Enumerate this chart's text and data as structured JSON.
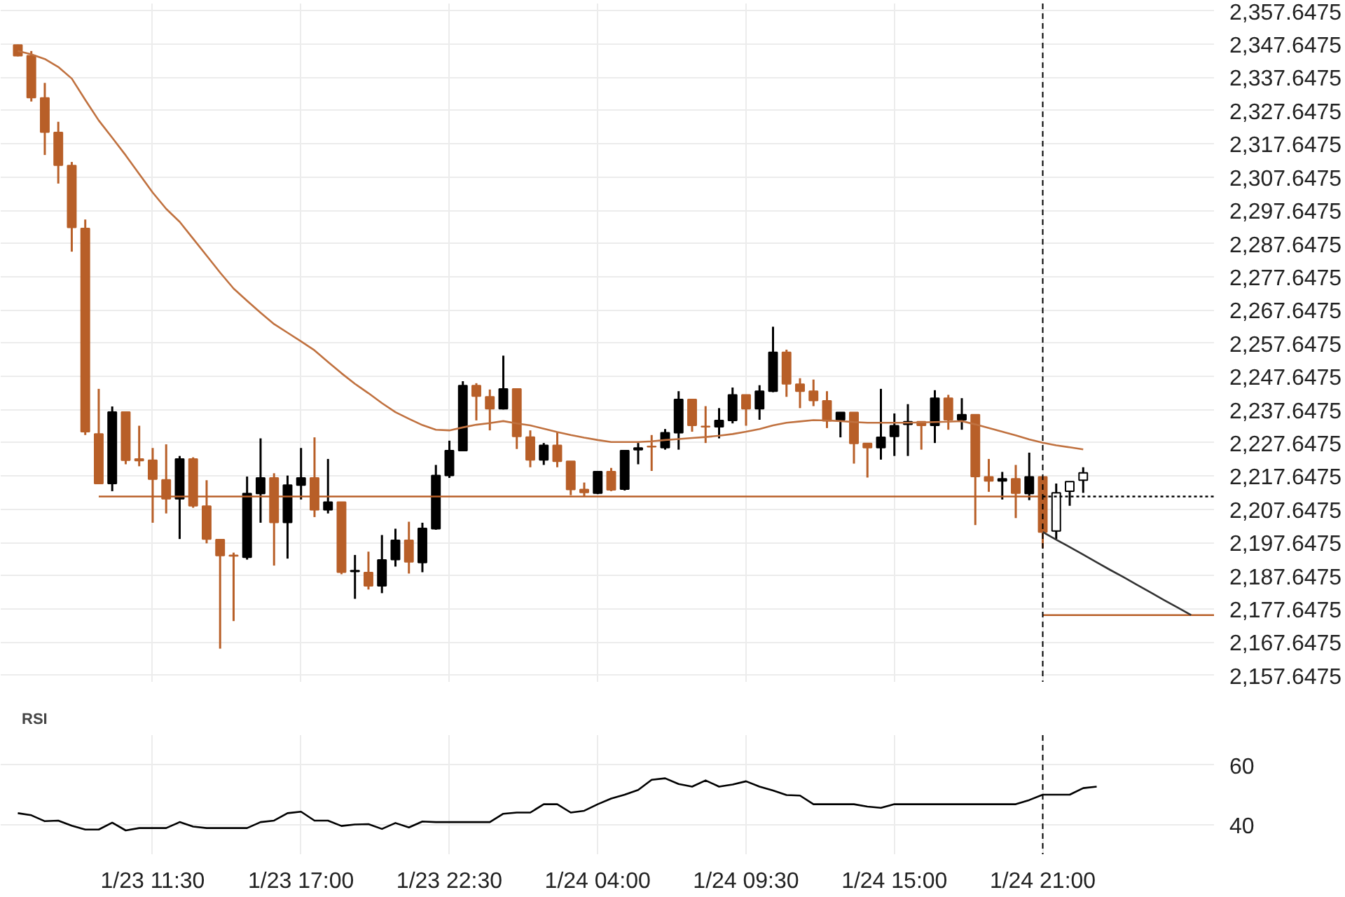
{
  "chart_data": [
    {
      "type": "candlestick",
      "categories": [
        null,
        null,
        null,
        null,
        null,
        null,
        null,
        null,
        null,
        null,
        "1/23 11:30",
        null,
        null,
        null,
        null,
        null,
        null,
        null,
        null,
        null,
        null,
        "1/23 17:00",
        null,
        null,
        null,
        null,
        null,
        null,
        null,
        null,
        null,
        null,
        "1/23 22:30",
        null,
        null,
        null,
        null,
        null,
        null,
        null,
        null,
        null,
        null,
        "1/24 04:00",
        null,
        null,
        null,
        null,
        null,
        null,
        null,
        null,
        null,
        null,
        "1/24 09:30",
        null,
        null,
        null,
        null,
        null,
        null,
        null,
        null,
        null,
        null,
        "1/24 15:00",
        null,
        null,
        null,
        null,
        null,
        null,
        null,
        null,
        null,
        null,
        "1/24 21:00",
        null,
        null,
        null,
        null,
        null,
        null,
        null,
        null,
        null,
        null,
        null,
        null,
        null
      ],
      "ohlc": [
        [
          2347.4,
          2347.5,
          2344.0,
          2344.2
        ],
        [
          2344.2,
          2345.6,
          2330.4,
          2331.6
        ],
        [
          2331.5,
          2336.0,
          2314.3,
          2321.2
        ],
        [
          2321.1,
          2324.3,
          2305.7,
          2311.2
        ],
        [
          2311.1,
          2312.2,
          2285.2,
          2292.5
        ],
        [
          2292.2,
          2294.9,
          2230.0,
          2231.0
        ],
        [
          2230.3,
          2243.9,
          2215.4,
          2215.4
        ],
        [
          2215.4,
          2238.6,
          2213.1,
          2236.9
        ],
        [
          2236.9,
          2236.9,
          2221.2,
          2222.4
        ],
        [
          2222.8,
          2232.8,
          2220.6,
          2222.3
        ],
        [
          2222.4,
          2226.1,
          2203.6,
          2216.7
        ],
        [
          2216.5,
          2227.2,
          2206.4,
          2210.8
        ],
        [
          2210.8,
          2223.7,
          2198.7,
          2222.8
        ],
        [
          2222.8,
          2223.3,
          2208.1,
          2208.7
        ],
        [
          2208.6,
          2216.4,
          2197.4,
          2198.7
        ],
        [
          2198.5,
          2198.5,
          2165.7,
          2193.7
        ],
        [
          2193.8,
          2194.6,
          2174.0,
          2193.6
        ],
        [
          2193.2,
          2217.5,
          2192.5,
          2212.4
        ],
        [
          2212.4,
          2229.0,
          2203.6,
          2217.1
        ],
        [
          2217.1,
          2218.5,
          2190.7,
          2203.7
        ],
        [
          2203.7,
          2217.8,
          2192.8,
          2214.9
        ],
        [
          2214.9,
          2226.1,
          2210.6,
          2217.1
        ],
        [
          2217.1,
          2229.3,
          2205.3,
          2207.5
        ],
        [
          2207.5,
          2222.8,
          2206.4,
          2209.8
        ],
        [
          2209.8,
          2209.8,
          2188.1,
          2188.7
        ],
        [
          2188.9,
          2193.9,
          2180.7,
          2189.2
        ],
        [
          2188.6,
          2194.9,
          2183.5,
          2184.6
        ],
        [
          2184.6,
          2199.9,
          2182.4,
          2192.4
        ],
        [
          2192.5,
          2201.8,
          2190.4,
          2198.3
        ],
        [
          2198.3,
          2203.9,
          2188.3,
          2191.8
        ],
        [
          2191.6,
          2203.6,
          2188.7,
          2201.9
        ],
        [
          2201.8,
          2221.0,
          2201.5,
          2217.8
        ],
        [
          2217.8,
          2228.3,
          2217.1,
          2225.3
        ],
        [
          2225.3,
          2246.2,
          2225.1,
          2244.9
        ],
        [
          2244.9,
          2245.6,
          2234.4,
          2241.7
        ],
        [
          2241.5,
          2243.7,
          2231.4,
          2237.9
        ],
        [
          2237.9,
          2253.9,
          2237.7,
          2243.9
        ],
        [
          2243.9,
          2243.9,
          2225.8,
          2229.6
        ],
        [
          2229.4,
          2231.4,
          2220.3,
          2222.5
        ],
        [
          2222.5,
          2227.6,
          2221.0,
          2226.9
        ],
        [
          2226.9,
          2231.0,
          2220.3,
          2222.1
        ],
        [
          2222.1,
          2222.1,
          2211.9,
          2213.6
        ],
        [
          2213.6,
          2215.7,
          2211.5,
          2212.7
        ],
        [
          2212.5,
          2219.0,
          2212.2,
          2219.0
        ],
        [
          2219.0,
          2220.1,
          2213.1,
          2213.5
        ],
        [
          2213.7,
          2225.3,
          2213.3,
          2225.3
        ],
        [
          2225.6,
          2227.6,
          2221.2,
          2226.1
        ],
        [
          2226.6,
          2230.0,
          2219.2,
          2226.5
        ],
        [
          2226.2,
          2231.8,
          2225.6,
          2230.7
        ],
        [
          2230.7,
          2243.2,
          2225.6,
          2240.7
        ],
        [
          2240.7,
          2240.7,
          2231.0,
          2232.9
        ],
        [
          2232.6,
          2238.7,
          2227.6,
          2232.5
        ],
        [
          2232.5,
          2238.1,
          2229.0,
          2234.4
        ],
        [
          2234.4,
          2244.3,
          2233.5,
          2242.1
        ],
        [
          2242.1,
          2242.1,
          2232.8,
          2237.9
        ],
        [
          2237.9,
          2245.0,
          2234.6,
          2243.2
        ],
        [
          2243.2,
          2262.6,
          2242.9,
          2254.9
        ],
        [
          2254.9,
          2255.7,
          2241.5,
          2245.4
        ],
        [
          2245.3,
          2247.1,
          2238.1,
          2243.2
        ],
        [
          2243.2,
          2246.7,
          2238.7,
          2240.4
        ],
        [
          2240.3,
          2243.2,
          2232.1,
          2234.3
        ],
        [
          2234.6,
          2236.8,
          2229.3,
          2236.8
        ],
        [
          2236.8,
          2236.8,
          2221.4,
          2227.5
        ],
        [
          2227.5,
          2227.5,
          2217.2,
          2226.2
        ],
        [
          2226.2,
          2243.9,
          2222.6,
          2229.3
        ],
        [
          2229.6,
          2236.5,
          2223.7,
          2232.8
        ],
        [
          2233.2,
          2239.3,
          2223.7,
          2234.0
        ],
        [
          2234.0,
          2234.0,
          2225.6,
          2232.9
        ],
        [
          2232.9,
          2243.5,
          2227.6,
          2241.1
        ],
        [
          2241.1,
          2242.1,
          2231.6,
          2234.6
        ],
        [
          2234.6,
          2241.1,
          2231.6,
          2236.1
        ],
        [
          2236.1,
          2236.1,
          2202.9,
          2217.5
        ],
        [
          2217.4,
          2222.8,
          2212.9,
          2216.2
        ],
        [
          2216.2,
          2218.9,
          2210.6,
          2216.8
        ],
        [
          2216.8,
          2221.0,
          2205.0,
          2212.5
        ],
        [
          2212.4,
          2224.7,
          2210.4,
          2217.4
        ],
        [
          2217.4,
          2217.4,
          2196.0,
          2200.8
        ],
        [
          2201.1,
          2215.4,
          2198.7,
          2212.6
        ],
        [
          2213.1,
          2216.0,
          2208.7,
          2216.0
        ],
        [
          2216.4,
          2220.3,
          2212.6,
          2218.6
        ],
        null,
        null,
        null,
        null,
        null,
        null,
        null,
        null,
        null,
        null
      ],
      "colors": [
        "#b85f28",
        "#b85f28",
        "#b85f28",
        "#b85f28",
        "#b85f28",
        "#b85f28",
        "#b85f28",
        "#000000",
        "#b85f28",
        "#b85f28",
        "#b85f28",
        "#b85f28",
        "#000000",
        "#b85f28",
        "#b85f28",
        "#b85f28",
        "#b85f28",
        "#000000",
        "#000000",
        "#b85f28",
        "#000000",
        "#000000",
        "#b85f28",
        "#000000",
        "#b85f28",
        "#000000",
        "#b85f28",
        "#000000",
        "#000000",
        "#b85f28",
        "#000000",
        "#000000",
        "#000000",
        "#000000",
        "#b85f28",
        "#b85f28",
        "#000000",
        "#b85f28",
        "#b85f28",
        "#000000",
        "#b85f28",
        "#b85f28",
        "#b85f28",
        "#000000",
        "#b85f28",
        "#000000",
        "#000000",
        "#b85f28",
        "#000000",
        "#000000",
        "#b85f28",
        "#b85f28",
        "#000000",
        "#000000",
        "#b85f28",
        "#000000",
        "#000000",
        "#b85f28",
        "#b85f28",
        "#b85f28",
        "#b85f28",
        "#000000",
        "#b85f28",
        "#b85f28",
        "#000000",
        "#000000",
        "#000000",
        "#b85f28",
        "#000000",
        "#b85f28",
        "#000000",
        "#b85f28",
        "#b85f28",
        "#000000",
        "#b85f28",
        "#000000",
        "#b85f28",
        "#ffffff",
        "#ffffff",
        "#ffffff",
        null,
        null,
        null,
        null,
        null,
        null,
        null,
        null,
        null,
        null
      ],
      "series": [
        {
          "type": "line",
          "color": "#c0713f",
          "line_style": "solid",
          "values": [
            2345.6,
            2344.6,
            2343.2,
            2340.8,
            2337.3,
            2330.9,
            2324.7,
            2319.5,
            2314.2,
            2308.6,
            2303.0,
            2298.1,
            2294.2,
            2289.1,
            2284.0,
            2278.9,
            2274.1,
            2270.4,
            2266.8,
            2263.4,
            2260.8,
            2258.2,
            2255.5,
            2252.0,
            2248.6,
            2245.4,
            2242.6,
            2239.6,
            2236.9,
            2234.9,
            2233.0,
            2231.6,
            2231.4,
            2232.3,
            2233.1,
            2233.6,
            2234.2,
            2233.5,
            2232.9,
            2231.9,
            2230.9,
            2230.0,
            2229.2,
            2228.5,
            2227.9,
            2227.9,
            2227.9,
            2228.1,
            2228.5,
            2228.8,
            2229.1,
            2229.4,
            2229.8,
            2230.3,
            2231.0,
            2231.8,
            2232.9,
            2233.7,
            2234.1,
            2234.5,
            2234.4,
            2234.2,
            2233.9,
            2233.7,
            2233.7,
            2233.7,
            2233.7,
            2233.8,
            2233.9,
            2234.0,
            2234.2,
            2233.2,
            2232.1,
            2231.0,
            2229.9,
            2228.7,
            2227.7,
            2226.9,
            2226.3,
            2225.7,
            null,
            null,
            null,
            null,
            null,
            null,
            null,
            null,
            null,
            null
          ]
        },
        {
          "type": "line",
          "color": "#b85f28",
          "line_style": "solid",
          "values": [
            null,
            null,
            null,
            null,
            null,
            null,
            2211.5,
            2211.5,
            2211.5,
            2211.5,
            2211.5,
            2211.5,
            2211.5,
            2211.5,
            2211.5,
            2211.5,
            2211.5,
            2211.5,
            2211.5,
            2211.5,
            2211.5,
            2211.5,
            2211.5,
            2211.5,
            2211.5,
            2211.5,
            2211.5,
            2211.5,
            2211.5,
            2211.5,
            2211.5,
            2211.5,
            2211.5,
            2211.5,
            2211.5,
            2211.5,
            2211.5,
            2211.5,
            2211.5,
            2211.5,
            2211.5,
            2211.5,
            2211.5,
            2211.5,
            2211.5,
            2211.5,
            2211.5,
            2211.5,
            2211.5,
            2211.5,
            2211.5,
            2211.5,
            2211.5,
            2211.5,
            2211.5,
            2211.5,
            2211.5,
            2211.5,
            2211.5,
            2211.5,
            2211.5,
            2211.5,
            2211.5,
            2211.5,
            2211.5,
            2211.5,
            2211.5,
            2211.5,
            2211.5,
            2211.5,
            2211.5,
            2211.5,
            2211.5,
            2211.5,
            2211.5,
            2211.5,
            2211.5,
            null,
            null,
            null,
            null,
            null,
            null,
            null,
            null,
            null,
            null,
            null,
            null,
            null
          ]
        },
        {
          "type": "line",
          "color": "#000000",
          "line_style": "dotted",
          "values": [
            null,
            null,
            null,
            null,
            null,
            null,
            null,
            null,
            null,
            null,
            null,
            null,
            null,
            null,
            null,
            null,
            null,
            null,
            null,
            null,
            null,
            null,
            null,
            null,
            null,
            null,
            null,
            null,
            null,
            null,
            null,
            null,
            null,
            null,
            null,
            null,
            null,
            null,
            null,
            null,
            null,
            null,
            null,
            null,
            null,
            null,
            null,
            null,
            null,
            null,
            null,
            null,
            null,
            null,
            null,
            null,
            null,
            null,
            null,
            null,
            null,
            null,
            null,
            null,
            null,
            null,
            null,
            null,
            null,
            null,
            null,
            null,
            null,
            null,
            null,
            null,
            2211.5,
            2211.5,
            2211.5,
            2211.5,
            2211.5,
            2211.5,
            2211.5,
            2211.5,
            2211.5,
            2211.5,
            2211.5,
            2211.5,
            2211.5,
            2211.5
          ]
        },
        {
          "type": "line",
          "color": "#b85f28",
          "line_style": "solid",
          "values": [
            null,
            null,
            null,
            null,
            null,
            null,
            null,
            null,
            null,
            null,
            null,
            null,
            null,
            null,
            null,
            null,
            null,
            null,
            null,
            null,
            null,
            null,
            null,
            null,
            null,
            null,
            null,
            null,
            null,
            null,
            null,
            null,
            null,
            null,
            null,
            null,
            null,
            null,
            null,
            null,
            null,
            null,
            null,
            null,
            null,
            null,
            null,
            null,
            null,
            null,
            null,
            null,
            null,
            null,
            null,
            null,
            null,
            null,
            null,
            null,
            null,
            null,
            null,
            null,
            null,
            null,
            null,
            null,
            null,
            null,
            null,
            null,
            null,
            null,
            null,
            null,
            2175.8,
            2175.8,
            2175.8,
            2175.8,
            2175.8,
            2175.8,
            2175.8,
            2175.8,
            2175.8,
            2175.8,
            2175.8,
            2175.8,
            2175.8,
            2175.8
          ]
        },
        {
          "type": "line",
          "color": "#333333",
          "line_style": "solid",
          "values": [
            null,
            null,
            null,
            null,
            null,
            null,
            null,
            null,
            null,
            null,
            null,
            null,
            null,
            null,
            null,
            null,
            null,
            null,
            null,
            null,
            null,
            null,
            null,
            null,
            null,
            null,
            null,
            null,
            null,
            null,
            null,
            null,
            null,
            null,
            null,
            null,
            null,
            null,
            null,
            null,
            null,
            null,
            null,
            null,
            null,
            null,
            null,
            null,
            null,
            null,
            null,
            null,
            null,
            null,
            null,
            null,
            null,
            null,
            null,
            null,
            null,
            null,
            null,
            null,
            null,
            null,
            null,
            null,
            null,
            null,
            null,
            null,
            null,
            null,
            null,
            null,
            2200.8,
            2198.5,
            2196.3,
            2194.0,
            2191.7,
            2189.4,
            2187.2,
            2184.9,
            2182.6,
            2180.3,
            2178.1,
            2175.8,
            null,
            null
          ]
        }
      ],
      "ref_lines": [
        {
          "axis": "x",
          "value": "1/24 21:00",
          "color": "#000000",
          "line_style": "dashed"
        }
      ],
      "ylim": [
        2155.7,
        2359.9
      ],
      "yticks": [
        {
          "value": 2157.6475,
          "label": "2,157.6475"
        },
        {
          "value": 2167.6475,
          "label": "2,167.6475"
        },
        {
          "value": 2177.6475,
          "label": "2,177.6475"
        },
        {
          "value": 2187.6475,
          "label": "2,187.6475"
        },
        {
          "value": 2197.6475,
          "label": "2,197.6475"
        },
        {
          "value": 2207.6475,
          "label": "2,207.6475"
        },
        {
          "value": 2217.6475,
          "label": "2,217.6475"
        },
        {
          "value": 2227.6475,
          "label": "2,227.6475"
        },
        {
          "value": 2237.6475,
          "label": "2,237.6475"
        },
        {
          "value": 2247.6475,
          "label": "2,247.6475"
        },
        {
          "value": 2257.6475,
          "label": "2,257.6475"
        },
        {
          "value": 2267.6475,
          "label": "2,267.6475"
        },
        {
          "value": 2277.6475,
          "label": "2,277.6475"
        },
        {
          "value": 2287.6475,
          "label": "2,287.6475"
        },
        {
          "value": 2297.6475,
          "label": "2,297.6475"
        },
        {
          "value": 2307.6475,
          "label": "2,307.6475"
        },
        {
          "value": 2317.6475,
          "label": "2,317.6475"
        },
        {
          "value": 2327.6475,
          "label": "2,327.6475"
        },
        {
          "value": 2337.6475,
          "label": "2,337.6475"
        },
        {
          "value": 2347.6475,
          "label": "2,347.6475"
        },
        {
          "value": 2357.6475,
          "label": "2,357.6475"
        }
      ],
      "grid": true,
      "tick_labels": "y"
    },
    {
      "type": "line",
      "title": "RSI",
      "color": "#000000",
      "categories": [
        null,
        null,
        null,
        null,
        null,
        null,
        null,
        null,
        null,
        null,
        "1/23 11:30",
        null,
        null,
        null,
        null,
        null,
        null,
        null,
        null,
        null,
        null,
        "1/23 17:00",
        null,
        null,
        null,
        null,
        null,
        null,
        null,
        null,
        null,
        null,
        "1/23 22:30",
        null,
        null,
        null,
        null,
        null,
        null,
        null,
        null,
        null,
        null,
        "1/24 04:00",
        null,
        null,
        null,
        null,
        null,
        null,
        null,
        null,
        null,
        null,
        "1/24 09:30",
        null,
        null,
        null,
        null,
        null,
        null,
        null,
        null,
        null,
        null,
        "1/24 15:00",
        null,
        null,
        null,
        null,
        null,
        null,
        null,
        null,
        null,
        null,
        "1/24 21:00",
        null,
        null,
        null,
        null,
        null,
        null,
        null,
        null,
        null,
        null,
        null,
        null,
        null
      ],
      "values": [
        43.8,
        43.1,
        41.1,
        41.3,
        39.6,
        38.3,
        38.3,
        40.6,
        38.0,
        38.8,
        38.8,
        38.8,
        40.8,
        39.3,
        38.8,
        38.8,
        38.8,
        38.8,
        40.8,
        41.3,
        43.8,
        44.3,
        41.3,
        41.3,
        39.5,
        40.0,
        40.1,
        38.5,
        40.5,
        39.0,
        41.0,
        40.8,
        40.8,
        40.8,
        40.8,
        40.8,
        43.6,
        44.0,
        44.0,
        46.8,
        46.8,
        44.0,
        44.6,
        46.8,
        48.7,
        50.0,
        51.6,
        55.0,
        55.5,
        53.6,
        52.7,
        54.8,
        52.7,
        53.4,
        54.5,
        52.7,
        51.4,
        49.9,
        49.7,
        46.8,
        46.8,
        46.8,
        46.8,
        46.0,
        45.6,
        46.8,
        46.8,
        46.8,
        46.8,
        46.8,
        46.8,
        46.8,
        46.8,
        46.8,
        46.8,
        48.2,
        50.0,
        50.0,
        50.0,
        52.2,
        52.7,
        null,
        null,
        null,
        null,
        null,
        null,
        null,
        null,
        null
      ],
      "ref_lines": [
        {
          "axis": "x",
          "value": "1/24 21:00",
          "color": "#000000",
          "line_style": "dashed"
        }
      ],
      "ylim": [
        30,
        70
      ],
      "yticks": [
        40,
        60
      ],
      "grid": true
    }
  ]
}
